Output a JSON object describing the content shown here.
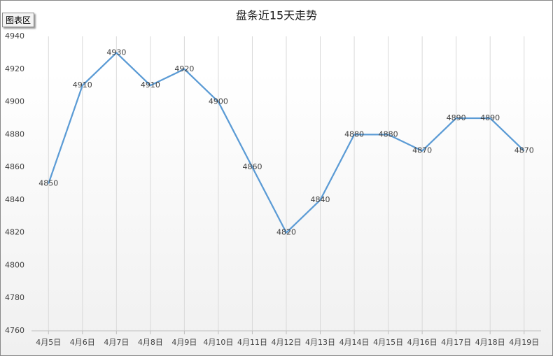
{
  "ui": {
    "label": "图表区"
  },
  "chart_data": {
    "type": "line",
    "title": "盘条近15天走势",
    "categories": [
      "4月5日",
      "4月6日",
      "4月7日",
      "4月8日",
      "4月9日",
      "4月10日",
      "4月11日",
      "4月12日",
      "4月13日",
      "4月14日",
      "4月15日",
      "4月16日",
      "4月17日",
      "4月18日",
      "4月19日"
    ],
    "values": [
      4850,
      4910,
      4930,
      4910,
      4920,
      4900,
      4860,
      4820,
      4840,
      4880,
      4880,
      4870,
      4890,
      4890,
      4870
    ],
    "color": "#5b9bd5",
    "ylim": [
      4760,
      4940
    ],
    "yticks": [
      4760,
      4780,
      4800,
      4820,
      4840,
      4860,
      4880,
      4900,
      4920,
      4940
    ],
    "grid": "x",
    "data_labels": true
  }
}
